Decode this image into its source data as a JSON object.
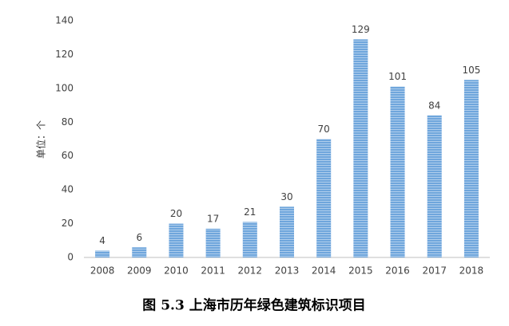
{
  "chart_data": {
    "type": "bar",
    "title": "图 5.3 上海市历年绿色建筑标识项目",
    "y_label": "单位：个",
    "categories": [
      "2008",
      "2009",
      "2010",
      "2011",
      "2012",
      "2013",
      "2014",
      "2015",
      "2016",
      "2017",
      "2018"
    ],
    "values": [
      4,
      6,
      20,
      17,
      21,
      30,
      70,
      129,
      101,
      84,
      105
    ],
    "color": "#6fa6dc",
    "ylim": [
      0,
      140
    ],
    "yticks": [
      0,
      20,
      40,
      60,
      80,
      100,
      120,
      140
    ],
    "grid": false
  }
}
